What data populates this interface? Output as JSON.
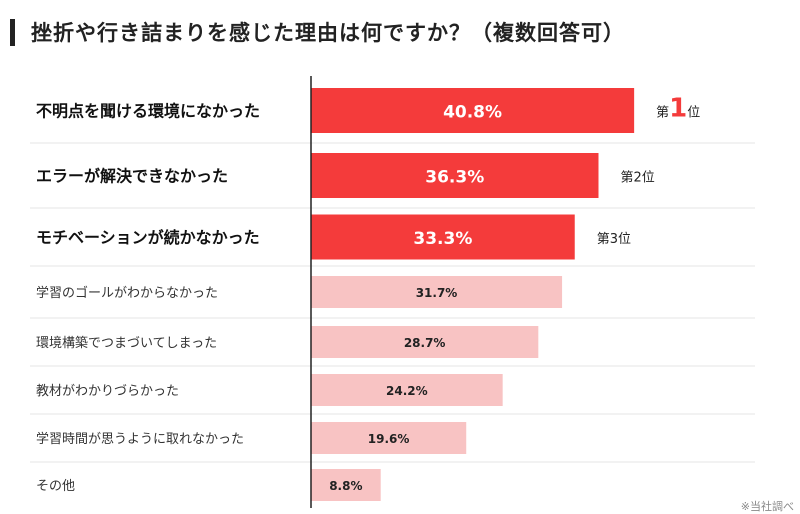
{
  "header": {
    "title": "挫折や行き詰まりを感じた理由は何ですか？（複数回答可）"
  },
  "colors": {
    "top": "#F43B3B",
    "rest": "#F8C3C3",
    "gridline": "#E6E6E6",
    "axis": "#222222",
    "rank_accent": "#F43B3B"
  },
  "chart_data": {
    "type": "bar",
    "orientation": "horizontal",
    "title": "挫折や行き詰まりを感じた理由は何ですか？（複数回答可）",
    "unit": "%",
    "xlim": [
      0,
      50
    ],
    "categories": [
      "不明点を聞ける環境になかった",
      "エラーが解決できなかった",
      "モチベーションが続かなかった",
      "学習のゴールがわからなかった",
      "環境構築でつまづいてしまった",
      "教材がわかりづらかった",
      "学習時間が思うように取れなかった",
      "その他"
    ],
    "values": [
      40.8,
      36.3,
      33.3,
      31.7,
      28.7,
      24.2,
      19.6,
      8.8
    ],
    "data_labels": [
      "40.8%",
      "36.3%",
      "33.3%",
      "31.7%",
      "28.7%",
      "24.2%",
      "19.6%",
      "8.8%"
    ],
    "highlighted": [
      true,
      true,
      true,
      false,
      false,
      false,
      false,
      false
    ],
    "ranks": [
      {
        "prefix": "第",
        "number": "1",
        "suffix": "位"
      },
      {
        "prefix": "第",
        "number": "2",
        "suffix": "位"
      },
      {
        "prefix": "第",
        "number": "3",
        "suffix": "位"
      }
    ]
  },
  "footnote": "※当社調べ"
}
